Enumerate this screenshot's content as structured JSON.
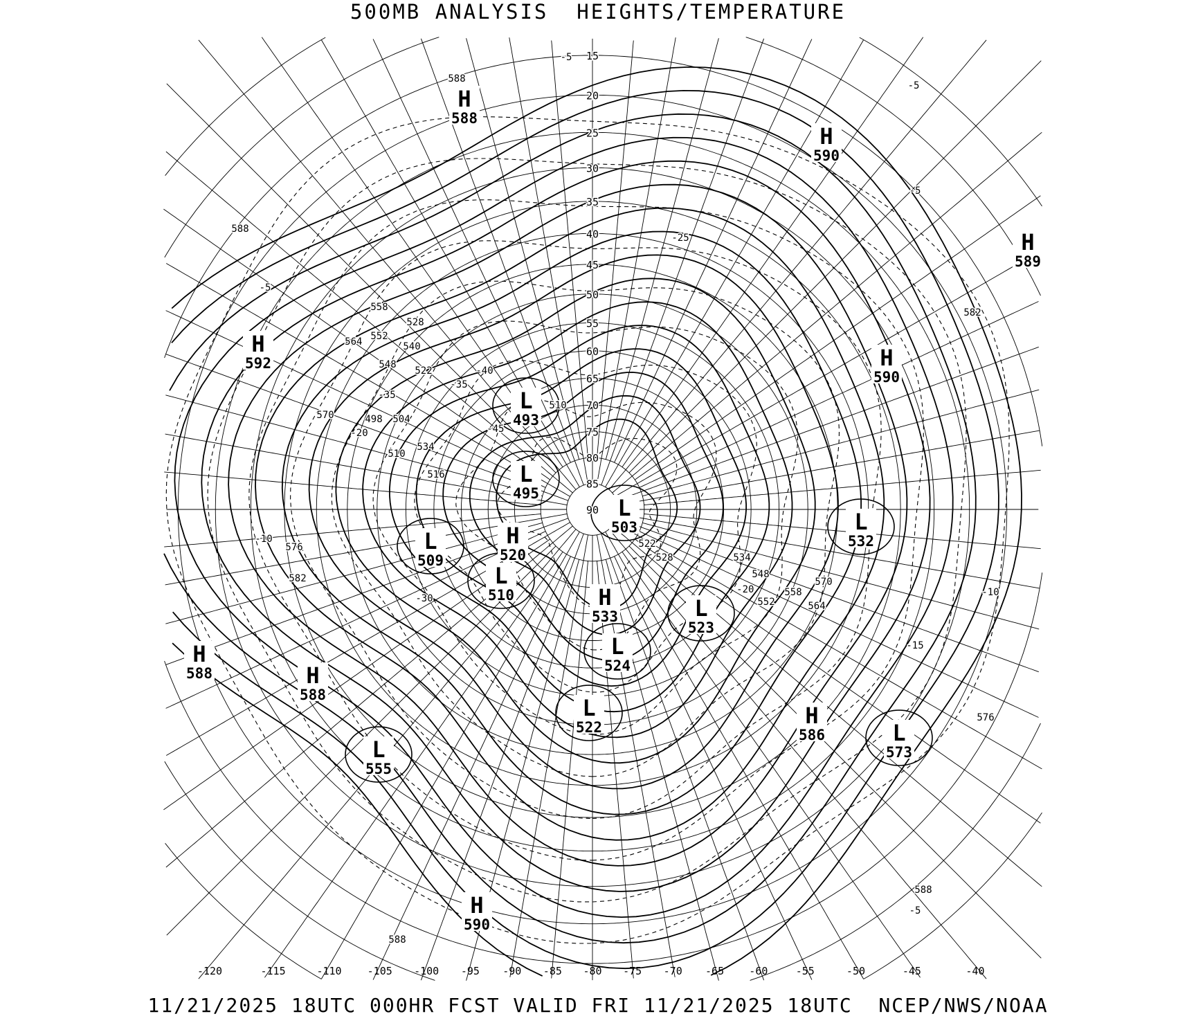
{
  "title": "500MB ANALYSIS  HEIGHTS/TEMPERATURE",
  "footer": "11/21/2025 18UTC 000HR FCST VALID FRI 11/21/2025 18UTC  NCEP/NWS/NOAA",
  "map": {
    "projection": "polar stereographic (north)",
    "latitude_labels": [
      "15",
      "20",
      "25",
      "30",
      "35",
      "40",
      "45",
      "50",
      "55",
      "60",
      "65",
      "70",
      "75",
      "80",
      "85",
      "90"
    ],
    "longitude_labels": [
      "-120",
      "-115",
      "-110",
      "-105",
      "-100",
      "-95",
      "-90",
      "-85",
      "-80",
      "-75",
      "-70",
      "-65",
      "-60",
      "-55",
      "-50",
      "-45",
      "-40"
    ],
    "height_contour_interval_dam": 6,
    "temperature_line_style": "dashed",
    "pressure_centers": [
      {
        "type": "H",
        "value": "588"
      },
      {
        "type": "H",
        "value": "590"
      },
      {
        "type": "H",
        "value": "589"
      },
      {
        "type": "H",
        "value": "592"
      },
      {
        "type": "H",
        "value": "590"
      },
      {
        "type": "L",
        "value": "493"
      },
      {
        "type": "L",
        "value": "495"
      },
      {
        "type": "L",
        "value": "503"
      },
      {
        "type": "H",
        "value": "520"
      },
      {
        "type": "L",
        "value": "509"
      },
      {
        "type": "L",
        "value": "510"
      },
      {
        "type": "H",
        "value": "533"
      },
      {
        "type": "L",
        "value": "523"
      },
      {
        "type": "L",
        "value": "532"
      },
      {
        "type": "L",
        "value": "524"
      },
      {
        "type": "H",
        "value": "588"
      },
      {
        "type": "H",
        "value": "588"
      },
      {
        "type": "L",
        "value": "522"
      },
      {
        "type": "L",
        "value": "555"
      },
      {
        "type": "H",
        "value": "586"
      },
      {
        "type": "L",
        "value": "573"
      },
      {
        "type": "H",
        "value": "590"
      }
    ],
    "contour_labels": [
      "588",
      "588",
      "570",
      "576",
      "582",
      "558",
      "552",
      "528",
      "540",
      "564",
      "548",
      "522",
      "534",
      "516",
      "510",
      "504",
      "498",
      "510",
      "522",
      "528",
      "534",
      "548",
      "552",
      "558",
      "564",
      "570",
      "576",
      "582",
      "588",
      "588",
      "-5",
      "-5",
      "-5",
      "-5",
      "-5",
      "-10",
      "-10",
      "-15",
      "-20",
      "-20",
      "-25",
      "-30",
      "-35",
      "-35",
      "-40",
      "-45"
    ]
  }
}
